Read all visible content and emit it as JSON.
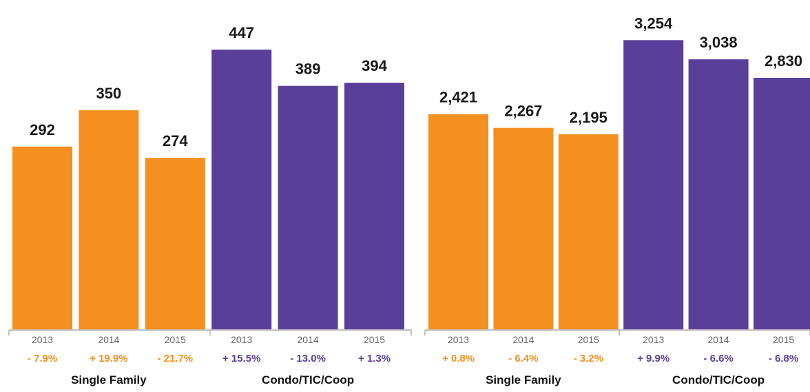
{
  "colors": {
    "single_family": "#F58F1F",
    "condo": "#5A3F9A",
    "axis": "#AAAAAA"
  },
  "chart_data": [
    {
      "type": "bar",
      "title": "",
      "xlabel": "",
      "ylabel": "",
      "ylim": [
        0,
        480
      ],
      "groups": [
        {
          "name": "Single Family",
          "color_key": "single_family",
          "categories": [
            "2013",
            "2014",
            "2015"
          ],
          "values": [
            292,
            350,
            274
          ],
          "value_labels": [
            "292",
            "350",
            "274"
          ],
          "changes": [
            "- 7.9%",
            "+ 19.9%",
            "- 21.7%"
          ]
        },
        {
          "name": "Condo/TIC/Coop",
          "color_key": "condo",
          "categories": [
            "2013",
            "2014",
            "2015"
          ],
          "values": [
            447,
            389,
            394
          ],
          "value_labels": [
            "447",
            "389",
            "394"
          ],
          "changes": [
            "+ 15.5%",
            "- 13.0%",
            "+ 1.3%"
          ]
        }
      ]
    },
    {
      "type": "bar",
      "title": "",
      "xlabel": "",
      "ylabel": "",
      "ylim": [
        0,
        3450
      ],
      "groups": [
        {
          "name": "Single Family",
          "color_key": "single_family",
          "categories": [
            "2013",
            "2014",
            "2015"
          ],
          "values": [
            2421,
            2267,
            2195
          ],
          "value_labels": [
            "2,421",
            "2,267",
            "2,195"
          ],
          "changes": [
            "+ 0.8%",
            "- 6.4%",
            "- 3.2%"
          ]
        },
        {
          "name": "Condo/TIC/Coop",
          "color_key": "condo",
          "categories": [
            "2013",
            "2014",
            "2015"
          ],
          "values": [
            3254,
            3038,
            2830
          ],
          "value_labels": [
            "3,254",
            "3,038",
            "2,830"
          ],
          "changes": [
            "+ 9.9%",
            "- 6.6%",
            "- 6.8%"
          ]
        }
      ]
    }
  ]
}
